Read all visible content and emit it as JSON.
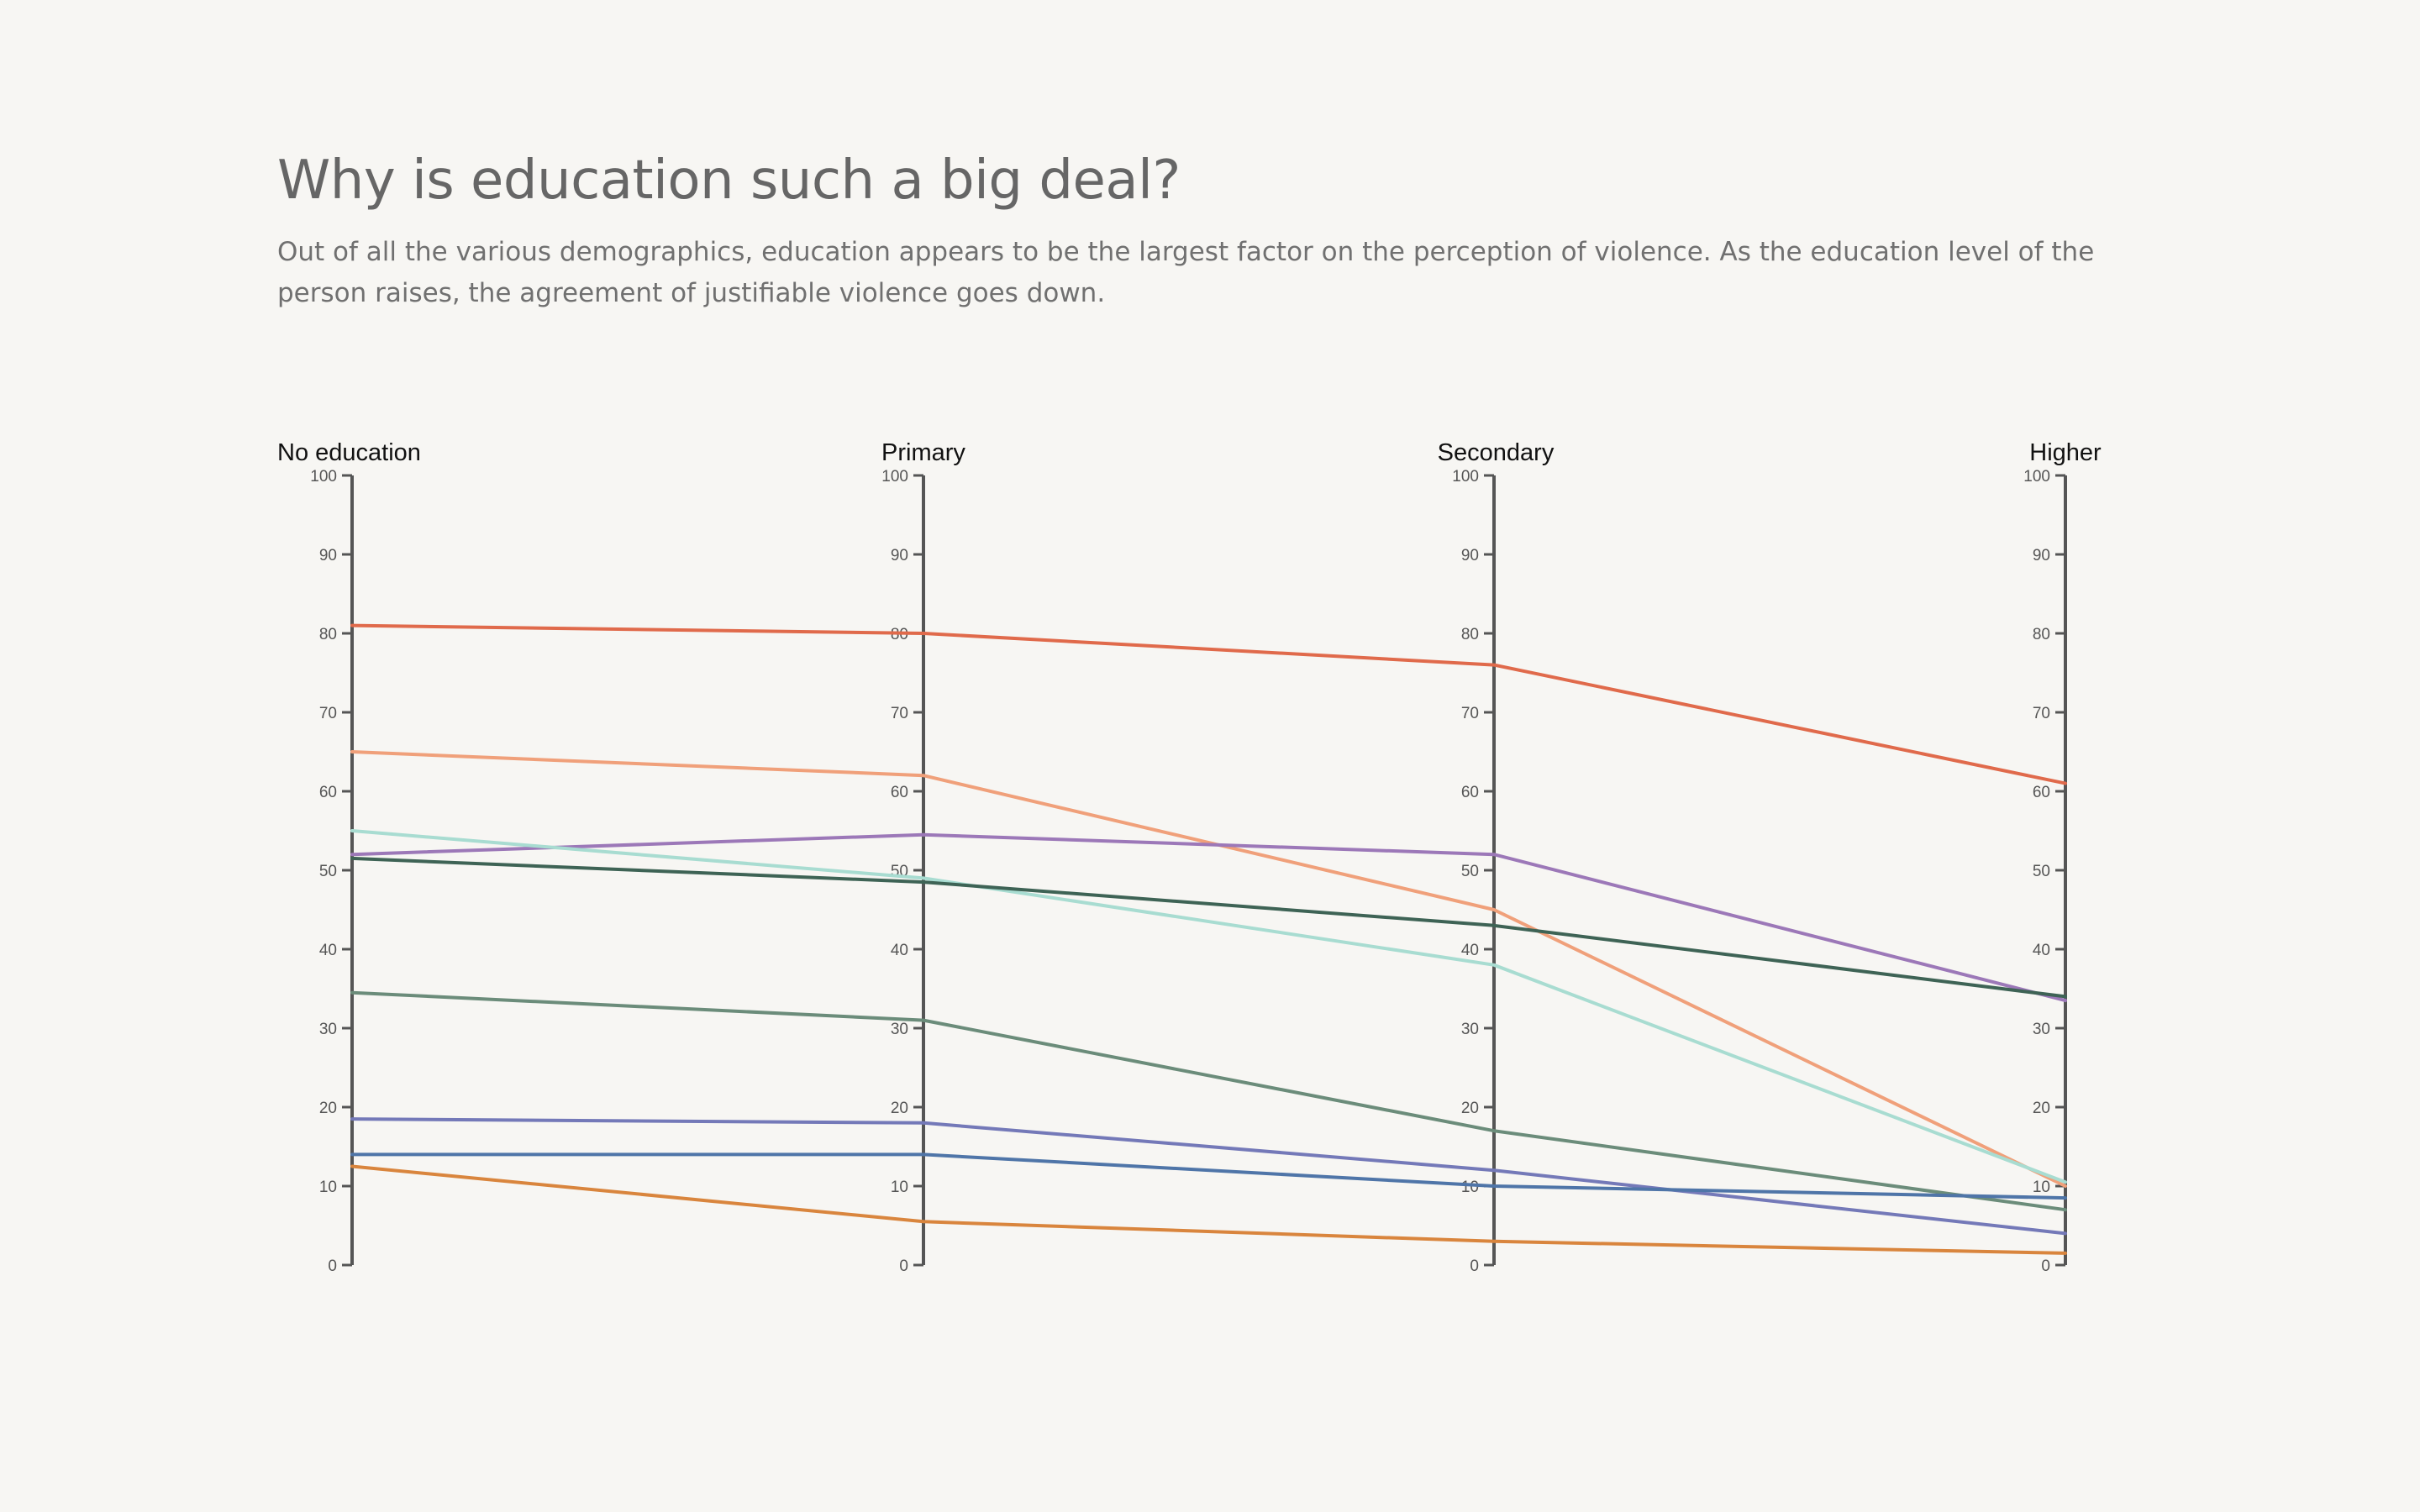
{
  "header": {
    "title": "Why is education such a big deal?",
    "subtitle": "Out of all the various demographics, education appears to be the largest factor on the perception of violence. As the education level of the person raises, the agreement of justifiable violence goes down."
  },
  "chart_data": {
    "type": "line",
    "categories": [
      "No education",
      "Primary",
      "Secondary",
      "Higher"
    ],
    "ylim": [
      0,
      100
    ],
    "yticks": [
      0,
      10,
      20,
      30,
      40,
      50,
      60,
      70,
      80,
      90,
      100
    ],
    "grid": false,
    "series": [
      {
        "color": "#e06a4b",
        "values": [
          81,
          80,
          76,
          61
        ]
      },
      {
        "color": "#f0a07a",
        "values": [
          65,
          62,
          45,
          10
        ]
      },
      {
        "color": "#9c78b8",
        "values": [
          52,
          54.5,
          52,
          33.5
        ]
      },
      {
        "color": "#a8dcd1",
        "values": [
          55,
          49,
          38,
          10.5
        ]
      },
      {
        "color": "#3e6355",
        "values": [
          51.5,
          48.5,
          43,
          34
        ]
      },
      {
        "color": "#6b8c7a",
        "values": [
          34.5,
          31,
          17,
          7
        ]
      },
      {
        "color": "#7479b8",
        "values": [
          18.5,
          18,
          12,
          4
        ]
      },
      {
        "color": "#4f75a8",
        "values": [
          14,
          14,
          10,
          8.5
        ]
      },
      {
        "color": "#d9853d",
        "values": [
          12.5,
          5.5,
          3,
          1.5
        ]
      }
    ]
  }
}
